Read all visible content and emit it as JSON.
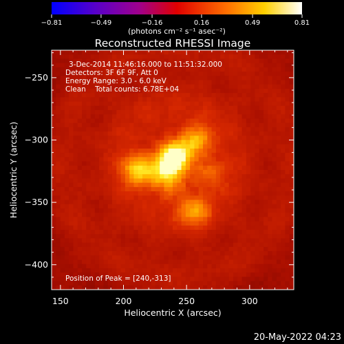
{
  "colorbar": {
    "ticks": [
      "-0.81",
      "-0.49",
      "-0.16",
      "0.16",
      "0.49",
      "0.81"
    ],
    "tick_values": [
      -0.81,
      -0.49,
      -0.16,
      0.16,
      0.49,
      0.81
    ],
    "range": [
      -0.81,
      0.81
    ],
    "units_label": "(photons cm⁻² s⁻¹ asec⁻²)",
    "colormap": "hot (blue-purple-red-orange-yellow-white)"
  },
  "chart_data": {
    "type": "heatmap",
    "title": "Reconstructed RHESSI Image",
    "xlabel": "Heliocentric X (arcsec)",
    "ylabel": "Heliocentric Y (arcsec)",
    "xlim": [
      143,
      335
    ],
    "ylim": [
      -420,
      -228
    ],
    "xticks": [
      150,
      200,
      250,
      300
    ],
    "xtick_labels": [
      "150",
      "200",
      "250",
      "300"
    ],
    "yticks": [
      -250,
      -300,
      -350,
      -400
    ],
    "ytick_labels": [
      "-250",
      "-300",
      "-350",
      "-400"
    ],
    "annotations": [
      "3-Dec-2014 11:46:16.000 to 11:51:32.000",
      "Detectors: 3F 6F 9F, Att 0",
      "Energy Range: 3.0 - 6.0 keV",
      "Clean    Total counts: 6.78E+04"
    ],
    "peak_label": "Position of Peak = [240,-313]",
    "peak": {
      "x": 240,
      "y": -313
    },
    "sources": [
      {
        "x": 240,
        "y": -313,
        "intensity": 1.0
      },
      {
        "x": 212,
        "y": -324,
        "intensity": 0.85
      },
      {
        "x": 258,
        "y": -300,
        "intensity": 0.7
      },
      {
        "x": 232,
        "y": -326,
        "intensity": 0.55
      },
      {
        "x": 268,
        "y": -327,
        "intensity": 0.4
      },
      {
        "x": 256,
        "y": -357,
        "intensity": 0.6
      },
      {
        "x": 238,
        "y": -338,
        "intensity": 0.3
      }
    ]
  },
  "footer_date": "20-May-2022 04:23"
}
